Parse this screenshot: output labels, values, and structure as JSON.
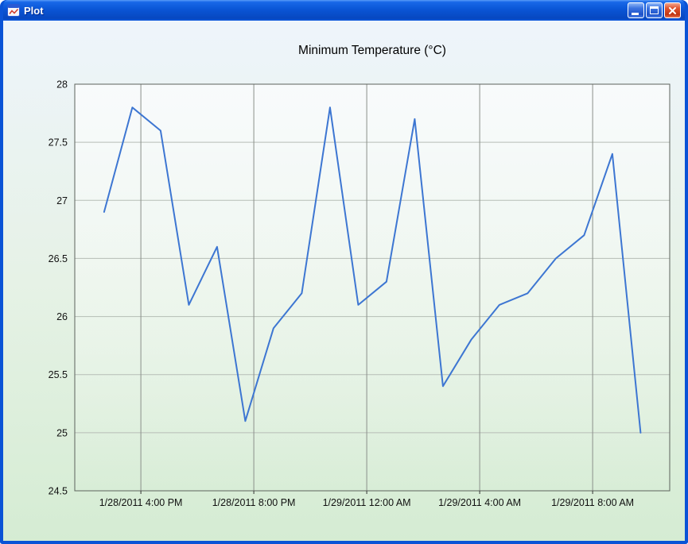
{
  "window": {
    "title": "Plot",
    "controls": {
      "minimize": "Minimize",
      "maximize": "Maximize",
      "close": "Close"
    }
  },
  "chart_data": {
    "type": "line",
    "title": "Minimum Temperature (°C)",
    "xlabel": "",
    "ylabel": "",
    "x_unit": "hours after 1/28/2011 12:00 PM; data points sampled hourly (estimated from pixels)",
    "x_range": [
      1.66,
      22.73
    ],
    "y_range": [
      24.5,
      28
    ],
    "ylim": [
      24.5,
      28
    ],
    "yticks": [
      24.5,
      25,
      25.5,
      26,
      26.5,
      27,
      27.5,
      28
    ],
    "xticks": [
      {
        "hour": 4,
        "label": "1/28/2011 4:00 PM"
      },
      {
        "hour": 8,
        "label": "1/28/2011 8:00 PM"
      },
      {
        "hour": 12,
        "label": "1/29/2011 12:00 AM"
      },
      {
        "hour": 16,
        "label": "1/29/2011 4:00 AM"
      },
      {
        "hour": 20,
        "label": "1/29/2011 8:00 AM"
      }
    ],
    "grid": true,
    "legend": "none",
    "series": [
      {
        "name": "Minimum Temperature (°C)",
        "color": "#3d76d2",
        "x_start_hour": 2.7,
        "x_step_hours": 1,
        "values": [
          26.9,
          27.8,
          27.6,
          26.1,
          26.6,
          25.1,
          25.9,
          26.2,
          27.8,
          26.1,
          26.3,
          27.7,
          25.4,
          25.8,
          26.1,
          26.2,
          26.5,
          26.7,
          27.4,
          25.0
        ]
      }
    ],
    "colors": {
      "line": "#3d76d2",
      "plot_border": "#5c625c",
      "grid_horizontal": "#b6bdb6",
      "grid_vertical": "#8a8f8a",
      "tick": "#333333",
      "text": "#111111",
      "background_top": "#eef4fb",
      "background_mid": "#e6f2e6",
      "background_bottom": "#d5ecd3"
    }
  }
}
